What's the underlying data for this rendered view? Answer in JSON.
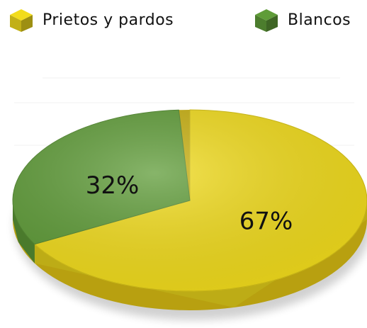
{
  "chart_data": {
    "type": "pie",
    "categories": [
      "Prietos y pardos",
      "Blancos"
    ],
    "values": [
      67,
      32
    ],
    "value_labels": [
      "67%",
      "32%"
    ],
    "colors": [
      "#f2dc1c",
      "#5f9c38"
    ]
  }
}
